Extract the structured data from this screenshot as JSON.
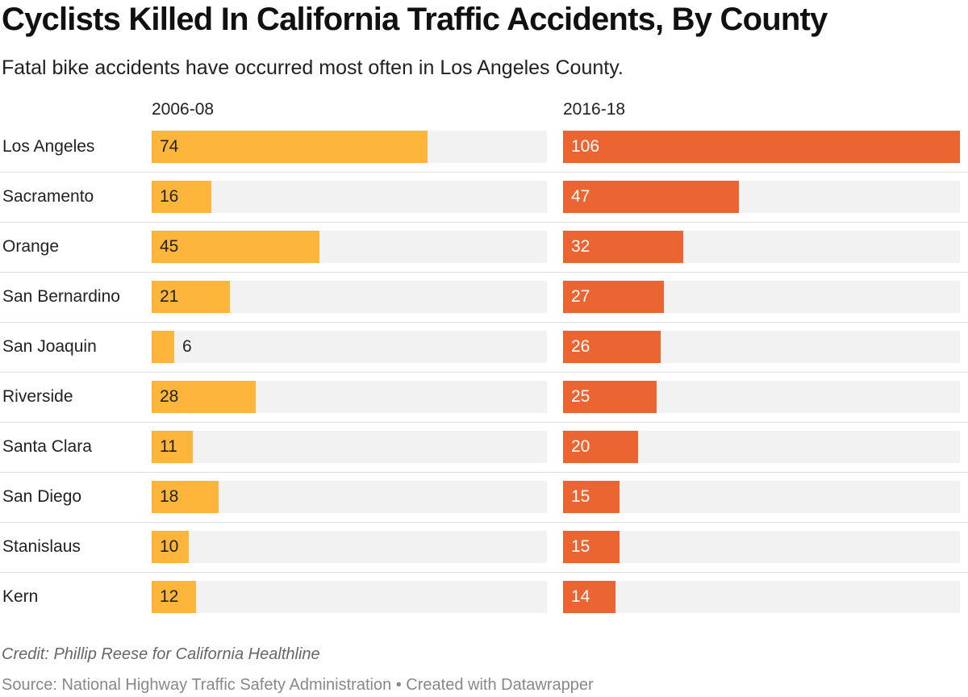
{
  "title": "Cyclists Killed In California Traffic Accidents, By County",
  "subtitle": "Fatal bike accidents have occurred most often in Los Angeles County.",
  "footer": {
    "credit": "Credit: Phillip Reese for California Healthline",
    "source": "Source: National Highway Traffic Safety Administration • Created with Datawrapper"
  },
  "colors": {
    "series_2006": "#fdb53c",
    "series_2016": "#ea6532",
    "track": "#f2f2f2"
  },
  "chart_data": {
    "type": "bar",
    "title": "Cyclists Killed In California Traffic Accidents, By County",
    "subtitle": "Fatal bike accidents have occurred most often in Los Angeles County.",
    "categories": [
      "Los Angeles",
      "Sacramento",
      "Orange",
      "San Bernardino",
      "San Joaquin",
      "Riverside",
      "Santa Clara",
      "San Diego",
      "Stanislaus",
      "Kern"
    ],
    "series": [
      {
        "name": "2006-08",
        "values": [
          74,
          16,
          45,
          21,
          6,
          28,
          11,
          18,
          10,
          12
        ]
      },
      {
        "name": "2016-18",
        "values": [
          106,
          47,
          32,
          27,
          26,
          25,
          20,
          15,
          15,
          14
        ]
      }
    ],
    "xlim": [
      0,
      106
    ],
    "orientation": "horizontal",
    "layout": "split bars"
  }
}
